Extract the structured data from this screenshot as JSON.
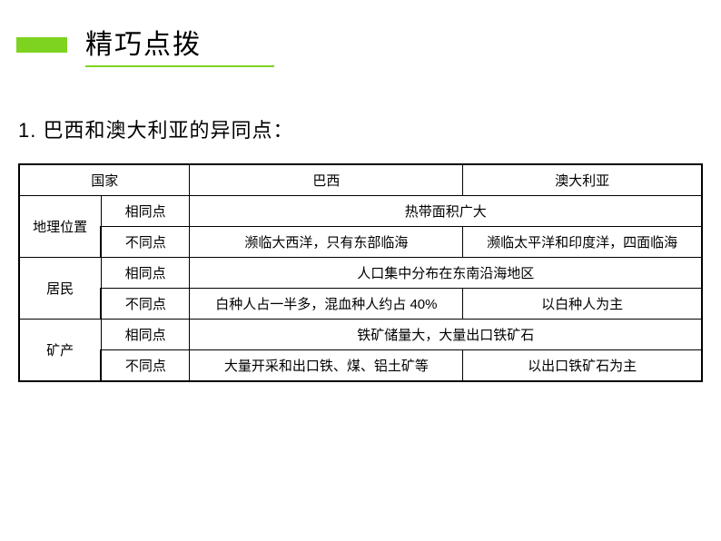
{
  "header": {
    "title": "精巧点拨"
  },
  "subtitle": "1. 巴西和澳大利亚的异同点：",
  "table": {
    "header": {
      "country": "国家",
      "brazil": "巴西",
      "australia": "澳大利亚"
    },
    "sections": [
      {
        "category": "地理位置",
        "same_label": "相同点",
        "same_text": "热带面积广大",
        "diff_label": "不同点",
        "diff_brazil": "濒临大西洋，只有东部临海",
        "diff_australia": "濒临太平洋和印度洋，四面临海"
      },
      {
        "category": "居民",
        "same_label": "相同点",
        "same_text": "人口集中分布在东南沿海地区",
        "diff_label": "不同点",
        "diff_brazil": "白种人占一半多，混血种人约占 40%",
        "diff_australia": "以白种人为主"
      },
      {
        "category": "矿产",
        "same_label": "相同点",
        "same_text": "铁矿储量大，大量出口铁矿石",
        "diff_label": "不同点",
        "diff_brazil": "大量开采和出口铁、煤、铝土矿等",
        "diff_australia": "以出口铁矿石为主"
      }
    ]
  }
}
